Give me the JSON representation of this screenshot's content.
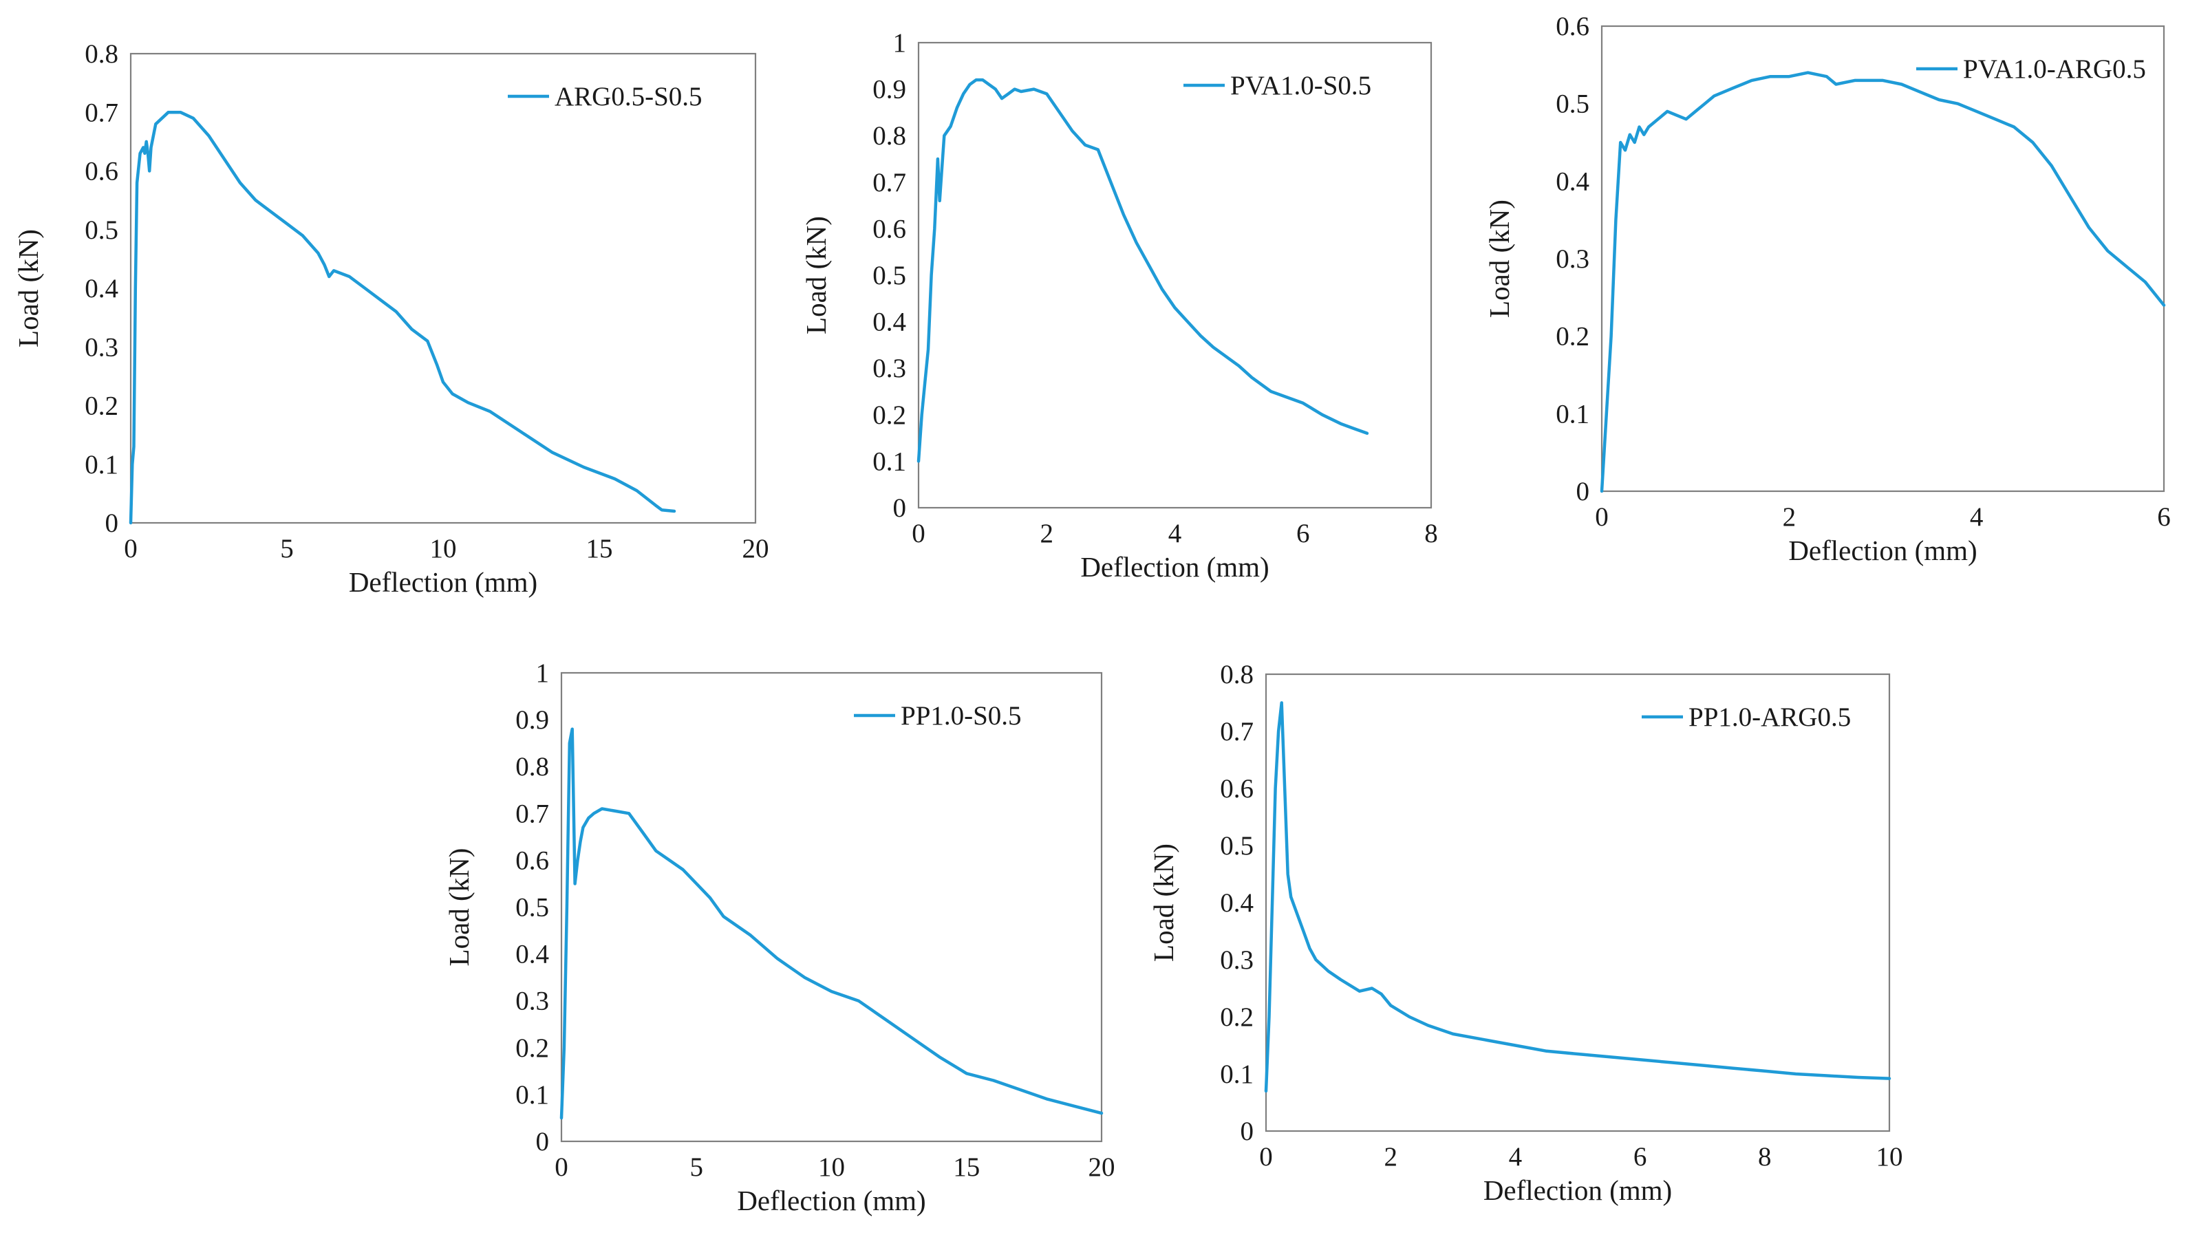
{
  "figure": {
    "line_color": "#1f9bd7",
    "axis_color": "#7f7f7f",
    "text_color": "#1a1a1a",
    "background": "#ffffff"
  },
  "chart_data": [
    {
      "type": "line",
      "series_name": "ARG0.5-S0.5",
      "xlabel": "Deflection (mm)",
      "ylabel": "Load (kN)",
      "xlim": [
        0,
        20
      ],
      "ylim": [
        0,
        0.8
      ],
      "x_ticks": [
        0,
        5,
        10,
        15,
        20
      ],
      "y_ticks": [
        0,
        0.1,
        0.2,
        0.3,
        0.4,
        0.5,
        0.6,
        0.7,
        0.8
      ],
      "legend_position": "top-right",
      "grid": false,
      "x": [
        0,
        0.05,
        0.1,
        0.15,
        0.2,
        0.3,
        0.4,
        0.45,
        0.5,
        0.55,
        0.6,
        0.65,
        0.8,
        1.0,
        1.2,
        1.4,
        1.6,
        2.0,
        2.5,
        3.0,
        3.5,
        4.0,
        5.0,
        5.5,
        6.0,
        6.2,
        6.35,
        6.5,
        7.0,
        7.5,
        8.0,
        8.5,
        9.0,
        9.5,
        9.8,
        10.0,
        10.3,
        10.8,
        11.5,
        12.5,
        13.5,
        14.5,
        15.5,
        16.2,
        16.8,
        17.0,
        17.4
      ],
      "y": [
        0.0,
        0.1,
        0.13,
        0.4,
        0.58,
        0.63,
        0.64,
        0.63,
        0.65,
        0.63,
        0.6,
        0.64,
        0.68,
        0.69,
        0.7,
        0.7,
        0.7,
        0.69,
        0.66,
        0.62,
        0.58,
        0.55,
        0.51,
        0.49,
        0.46,
        0.44,
        0.42,
        0.43,
        0.42,
        0.4,
        0.38,
        0.36,
        0.33,
        0.31,
        0.27,
        0.24,
        0.22,
        0.205,
        0.19,
        0.155,
        0.12,
        0.095,
        0.075,
        0.055,
        0.03,
        0.022,
        0.02
      ]
    },
    {
      "type": "line",
      "series_name": "PVA1.0-S0.5",
      "xlabel": "Deflection (mm)",
      "ylabel": "Load (kN)",
      "xlim": [
        0,
        8
      ],
      "ylim": [
        0,
        1
      ],
      "x_ticks": [
        0,
        2,
        4,
        6,
        8
      ],
      "y_ticks": [
        0,
        0.1,
        0.2,
        0.3,
        0.4,
        0.5,
        0.6,
        0.7,
        0.8,
        0.9,
        1
      ],
      "legend_position": "top-right",
      "grid": false,
      "x": [
        0,
        0.05,
        0.1,
        0.15,
        0.2,
        0.25,
        0.3,
        0.33,
        0.36,
        0.4,
        0.5,
        0.6,
        0.7,
        0.8,
        0.9,
        1.0,
        1.1,
        1.2,
        1.3,
        1.4,
        1.5,
        1.6,
        1.8,
        2.0,
        2.2,
        2.4,
        2.6,
        2.8,
        3.0,
        3.2,
        3.4,
        3.6,
        3.8,
        4.0,
        4.2,
        4.4,
        4.6,
        4.8,
        5.0,
        5.2,
        5.5,
        5.8,
        6.0,
        6.3,
        6.6,
        6.8,
        7.0
      ],
      "y": [
        0.1,
        0.2,
        0.27,
        0.34,
        0.5,
        0.6,
        0.75,
        0.66,
        0.72,
        0.8,
        0.82,
        0.86,
        0.89,
        0.91,
        0.92,
        0.92,
        0.91,
        0.9,
        0.88,
        0.89,
        0.9,
        0.895,
        0.9,
        0.89,
        0.85,
        0.81,
        0.78,
        0.77,
        0.7,
        0.63,
        0.57,
        0.52,
        0.47,
        0.43,
        0.4,
        0.37,
        0.345,
        0.325,
        0.305,
        0.28,
        0.25,
        0.235,
        0.225,
        0.2,
        0.18,
        0.17,
        0.16
      ]
    },
    {
      "type": "line",
      "series_name": "PVA1.0-ARG0.5",
      "xlabel": "Deflection (mm)",
      "ylabel": "Load (kN)",
      "xlim": [
        0,
        6
      ],
      "ylim": [
        0,
        0.6
      ],
      "x_ticks": [
        0,
        2,
        4,
        6
      ],
      "y_ticks": [
        0,
        0.1,
        0.2,
        0.3,
        0.4,
        0.5,
        0.6
      ],
      "legend_position": "top-right",
      "grid": false,
      "x": [
        0,
        0.05,
        0.1,
        0.15,
        0.2,
        0.25,
        0.3,
        0.35,
        0.4,
        0.45,
        0.5,
        0.6,
        0.7,
        0.8,
        0.9,
        1.0,
        1.1,
        1.2,
        1.4,
        1.6,
        1.8,
        2.0,
        2.2,
        2.4,
        2.5,
        2.7,
        3.0,
        3.2,
        3.4,
        3.6,
        3.8,
        4.0,
        4.2,
        4.4,
        4.6,
        4.8,
        5.0,
        5.2,
        5.4,
        5.6,
        5.8,
        6.0
      ],
      "y": [
        0.0,
        0.1,
        0.2,
        0.35,
        0.45,
        0.44,
        0.46,
        0.45,
        0.47,
        0.46,
        0.47,
        0.48,
        0.49,
        0.485,
        0.48,
        0.49,
        0.5,
        0.51,
        0.52,
        0.53,
        0.535,
        0.535,
        0.54,
        0.535,
        0.525,
        0.53,
        0.53,
        0.525,
        0.515,
        0.505,
        0.5,
        0.49,
        0.48,
        0.47,
        0.45,
        0.42,
        0.38,
        0.34,
        0.31,
        0.29,
        0.27,
        0.24
      ]
    },
    {
      "type": "line",
      "series_name": "PP1.0-S0.5",
      "xlabel": "Deflection (mm)",
      "ylabel": "Load (kN)",
      "xlim": [
        0,
        20
      ],
      "ylim": [
        0,
        1
      ],
      "x_ticks": [
        0,
        5,
        10,
        15,
        20
      ],
      "y_ticks": [
        0,
        0.1,
        0.2,
        0.3,
        0.4,
        0.5,
        0.6,
        0.7,
        0.8,
        0.9,
        1
      ],
      "legend_position": "top-right",
      "grid": false,
      "x": [
        0,
        0.1,
        0.2,
        0.3,
        0.4,
        0.5,
        0.6,
        0.7,
        0.8,
        1.0,
        1.2,
        1.5,
        2.0,
        2.5,
        3.0,
        3.5,
        4.0,
        4.5,
        5.0,
        5.5,
        6.0,
        7.0,
        8.0,
        9.0,
        10.0,
        11.0,
        12.0,
        13.0,
        14.0,
        15.0,
        16.0,
        17.0,
        18.0,
        19.0,
        20.0
      ],
      "y": [
        0.05,
        0.2,
        0.5,
        0.85,
        0.88,
        0.55,
        0.6,
        0.64,
        0.67,
        0.69,
        0.7,
        0.71,
        0.705,
        0.7,
        0.66,
        0.62,
        0.6,
        0.58,
        0.55,
        0.52,
        0.48,
        0.44,
        0.39,
        0.35,
        0.32,
        0.3,
        0.26,
        0.22,
        0.18,
        0.145,
        0.13,
        0.11,
        0.09,
        0.075,
        0.06
      ]
    },
    {
      "type": "line",
      "series_name": "PP1.0-ARG0.5",
      "xlabel": "Deflection (mm)",
      "ylabel": "Load (kN)",
      "xlim": [
        0,
        10
      ],
      "ylim": [
        0,
        0.8
      ],
      "x_ticks": [
        0,
        2,
        4,
        6,
        8,
        10
      ],
      "y_ticks": [
        0,
        0.1,
        0.2,
        0.3,
        0.4,
        0.5,
        0.6,
        0.7,
        0.8
      ],
      "legend_position": "top-right",
      "grid": false,
      "x": [
        0,
        0.05,
        0.1,
        0.15,
        0.2,
        0.25,
        0.3,
        0.35,
        0.4,
        0.5,
        0.6,
        0.7,
        0.8,
        1.0,
        1.2,
        1.5,
        1.7,
        1.85,
        2.0,
        2.3,
        2.6,
        3.0,
        3.5,
        4.0,
        4.5,
        5.0,
        5.5,
        6.0,
        6.5,
        7.0,
        7.5,
        8.0,
        8.5,
        9.0,
        9.5,
        10.0
      ],
      "y": [
        0.07,
        0.2,
        0.4,
        0.6,
        0.7,
        0.75,
        0.6,
        0.45,
        0.41,
        0.38,
        0.35,
        0.32,
        0.3,
        0.28,
        0.265,
        0.245,
        0.25,
        0.24,
        0.22,
        0.2,
        0.185,
        0.17,
        0.16,
        0.15,
        0.14,
        0.135,
        0.13,
        0.125,
        0.12,
        0.115,
        0.11,
        0.105,
        0.1,
        0.097,
        0.094,
        0.092
      ]
    }
  ]
}
